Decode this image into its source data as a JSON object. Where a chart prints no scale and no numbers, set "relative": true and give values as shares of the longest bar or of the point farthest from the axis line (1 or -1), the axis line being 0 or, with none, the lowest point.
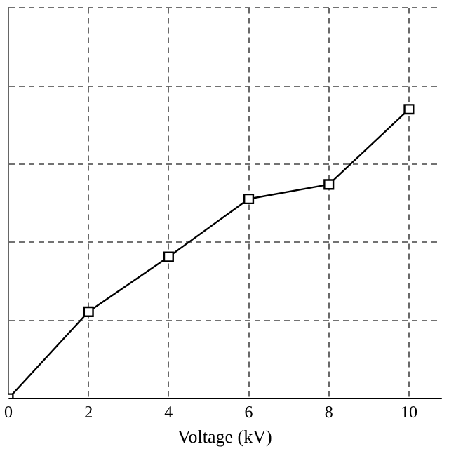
{
  "chart_data": {
    "type": "line",
    "xlabel": "Voltage (kV)",
    "relative": true,
    "x": [
      0,
      2,
      4,
      6,
      8,
      10
    ],
    "xlim": [
      0,
      10.8
    ],
    "xticks": [
      0,
      2,
      4,
      6,
      8,
      10
    ],
    "series": [
      {
        "color": "#000000",
        "values": [
          0,
          0.3,
          0.49,
          0.69,
          0.74,
          1
        ]
      }
    ],
    "grid": true,
    "marker": "square",
    "line_style": "solid",
    "tick_labels": "x",
    "legend": false
  }
}
